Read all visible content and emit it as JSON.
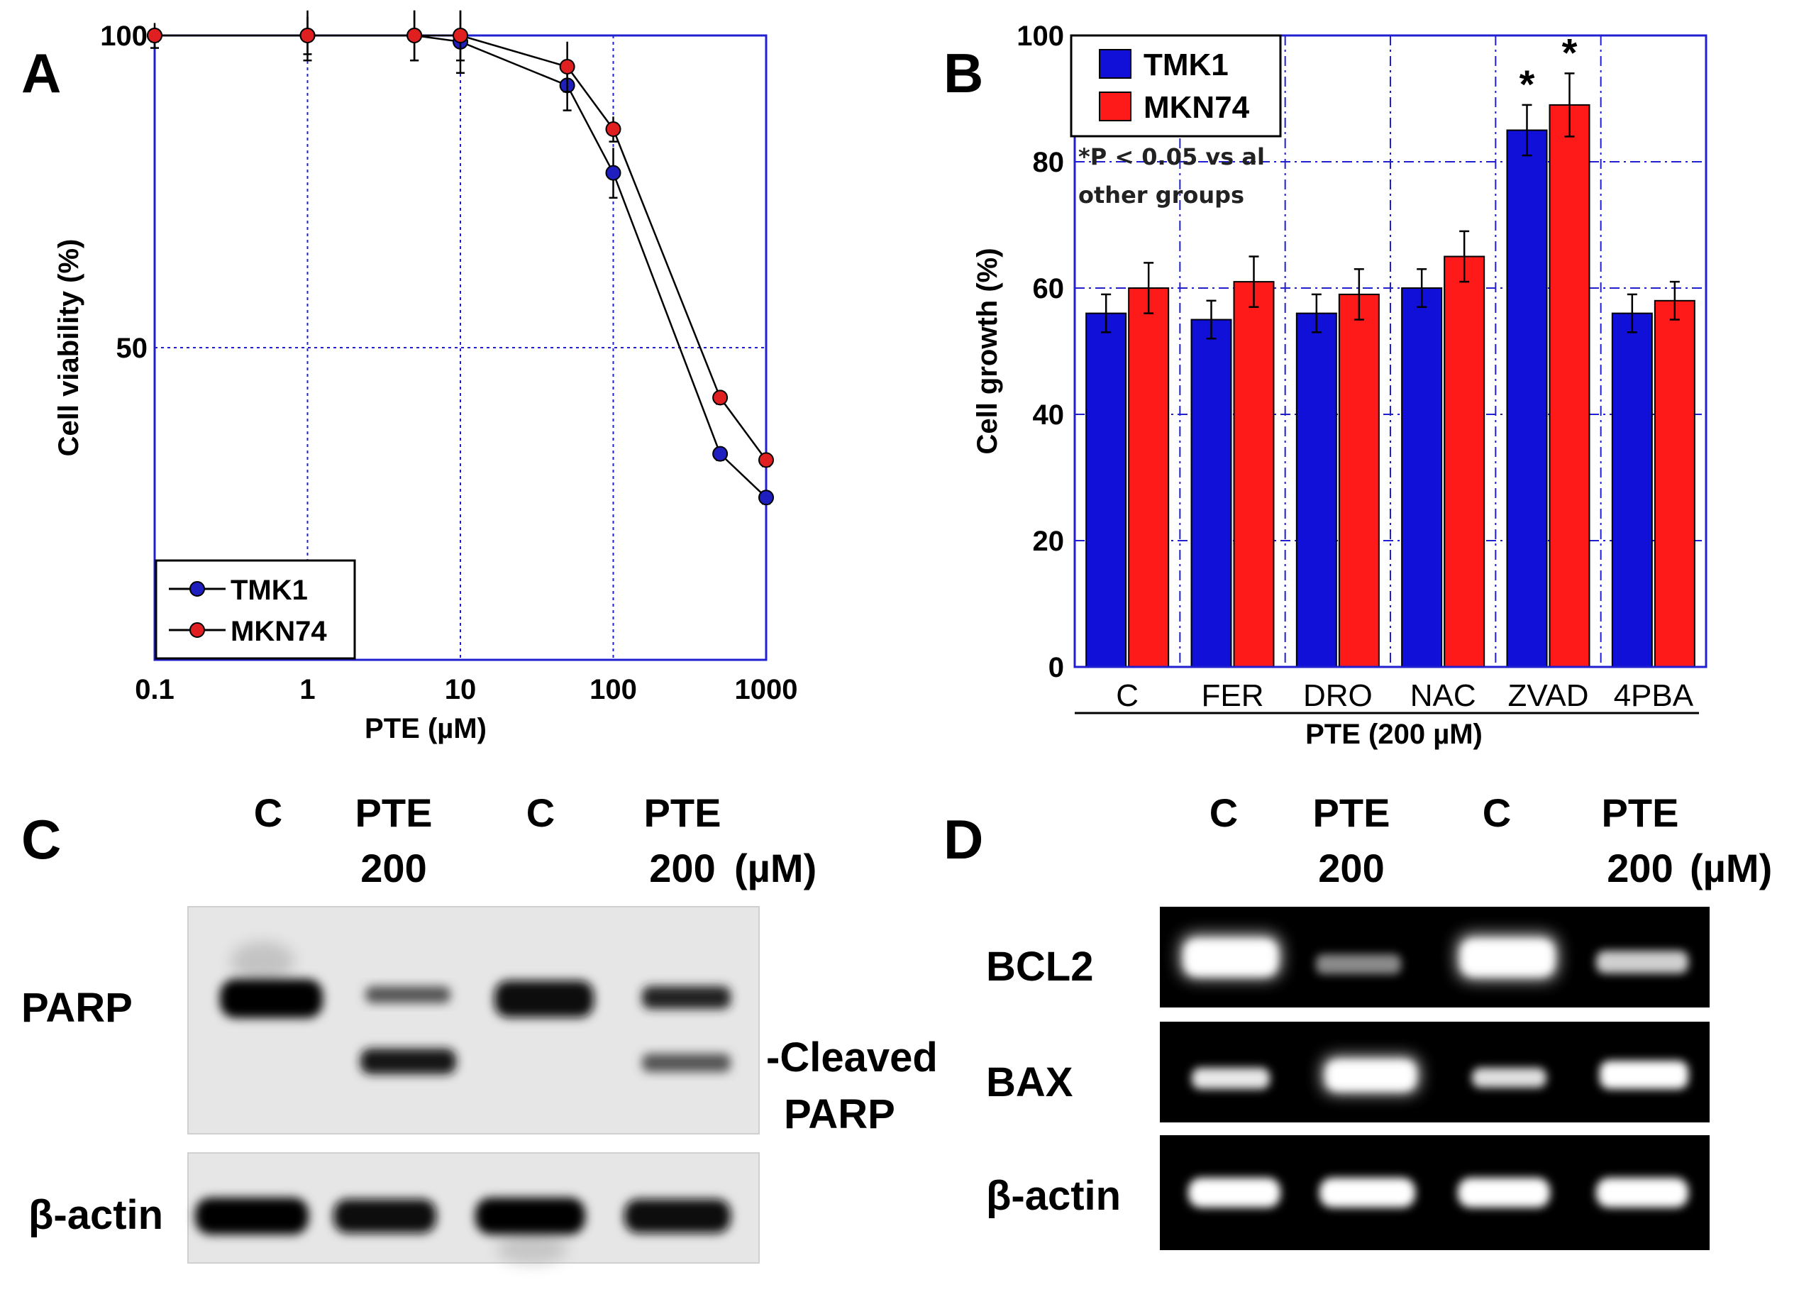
{
  "panels": {
    "a": {
      "letter": "A"
    },
    "b": {
      "letter": "B"
    },
    "c": {
      "letter": "C"
    },
    "d": {
      "letter": "D"
    }
  },
  "chart_data": [
    {
      "type": "line",
      "x_scale": "log",
      "xlabel": "PTE  (µM)",
      "ylabel": "Cell viability (%)",
      "xlim": [
        0.1,
        1000
      ],
      "ylim": [
        0,
        100
      ],
      "x_ticks": [
        0.1,
        1,
        10,
        100,
        1000
      ],
      "x_tick_labels": [
        "0.1",
        "1",
        "10",
        "100",
        "1000"
      ],
      "y_ticks": [
        50,
        100
      ],
      "y_tick_labels": [
        "50",
        "100"
      ],
      "grid": true,
      "legend": "bottom-left",
      "x": [
        0.1,
        1,
        5,
        10,
        50,
        100,
        500,
        1000
      ],
      "series": [
        {
          "name": "TMK1",
          "color": "#1f1fbf",
          "values": [
            100,
            100,
            100,
            99,
            92,
            78,
            33,
            26
          ],
          "errors": [
            2,
            4,
            4,
            5,
            4,
            4,
            1,
            1
          ]
        },
        {
          "name": "MKN74",
          "color": "#e02020",
          "values": [
            100,
            100,
            100,
            100,
            95,
            85,
            42,
            32
          ],
          "errors": [
            1,
            3,
            4,
            4,
            4,
            2,
            1,
            1
          ]
        }
      ]
    },
    {
      "type": "bar",
      "xlabel": "PTE (200 µM)",
      "ylabel": "Cell growth (%)",
      "ylim": [
        0,
        100
      ],
      "y_ticks": [
        0,
        20,
        40,
        60,
        80,
        100
      ],
      "y_tick_labels": [
        "0",
        "20",
        "40",
        "60",
        "80",
        "100"
      ],
      "grid": true,
      "legend": "top-left",
      "categories": [
        "C",
        "FER",
        "DRO",
        "NAC",
        "ZVAD",
        "4PBA"
      ],
      "series": [
        {
          "name": "TMK1",
          "color": "#1010d8",
          "values": [
            56,
            55,
            56,
            60,
            85,
            56
          ],
          "errors": [
            3,
            3,
            3,
            3,
            4,
            3
          ]
        },
        {
          "name": "MKN74",
          "color": "#ff1a1a",
          "values": [
            60,
            61,
            59,
            65,
            89,
            58
          ],
          "errors": [
            4,
            4,
            4,
            4,
            5,
            3
          ]
        }
      ],
      "annotations": [
        {
          "category": "ZVAD",
          "series": "TMK1",
          "text": "*"
        },
        {
          "category": "ZVAD",
          "series": "MKN74",
          "text": "*"
        }
      ],
      "note_lines": [
        "*P < 0.05 vs al",
        "other groups"
      ]
    }
  ],
  "blot_c": {
    "lane_labels_top": [
      "C",
      "PTE",
      "C",
      "PTE"
    ],
    "lane_labels_bottom": [
      "",
      "200",
      "",
      "200"
    ],
    "unit": "(µM)",
    "rows": [
      {
        "label": "PARP"
      },
      {
        "label": "β-actin"
      }
    ],
    "side_label_1": "-Cleaved",
    "side_label_2": "PARP"
  },
  "blot_d": {
    "lane_labels_top": [
      "C",
      "PTE",
      "C",
      "PTE"
    ],
    "lane_labels_bottom": [
      "",
      "200",
      "",
      "200"
    ],
    "unit": "(µM)",
    "rows": [
      {
        "label": "BCL2"
      },
      {
        "label": "BAX"
      },
      {
        "label": "β-actin"
      }
    ]
  }
}
